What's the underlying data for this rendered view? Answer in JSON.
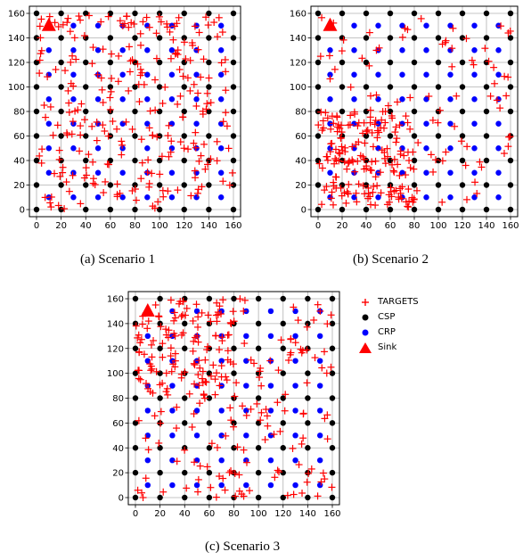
{
  "captions": {
    "a": "(a)  Scenario 1",
    "b": "(b)  Scenario 2",
    "c": "(c)  Scenario 3"
  },
  "legend": {
    "targets": "TARGETS",
    "csp": "CSP",
    "crp": "CRP",
    "sink": "Sink"
  },
  "colors": {
    "targets": "#ff0000",
    "csp": "#000000",
    "crp": "#0000ff",
    "sink": "#ff0000",
    "grid": "#b0b0b0"
  },
  "chart_data": [
    {
      "type": "scatter",
      "title": "",
      "xlim": [
        0,
        160
      ],
      "ylim": [
        0,
        160
      ],
      "xticks": [
        0,
        20,
        40,
        60,
        80,
        100,
        120,
        140,
        160
      ],
      "yticks": [
        0,
        20,
        40,
        60,
        80,
        100,
        120,
        140,
        160
      ],
      "grid": true,
      "csp_grid": {
        "start": 0,
        "end": 160,
        "step": 20
      },
      "crp_grid": {
        "start": 10,
        "end": 150,
        "step": 20
      },
      "sink": [
        10,
        150
      ],
      "targets_distribution": "uniform",
      "targets_count": 250
    },
    {
      "type": "scatter",
      "title": "",
      "xlim": [
        0,
        160
      ],
      "ylim": [
        0,
        160
      ],
      "xticks": [
        0,
        20,
        40,
        60,
        80,
        100,
        120,
        140,
        160
      ],
      "yticks": [
        0,
        20,
        40,
        60,
        80,
        100,
        120,
        140,
        160
      ],
      "grid": true,
      "csp_grid": {
        "start": 0,
        "end": 160,
        "step": 20
      },
      "crp_grid": {
        "start": 10,
        "end": 150,
        "step": 20
      },
      "sink": [
        10,
        150
      ],
      "targets_distribution": "clustered, dense in lower-left region (x 0-80, y 0-80), sparse elsewhere",
      "targets_count": 250
    },
    {
      "type": "scatter",
      "title": "",
      "xlim": [
        0,
        160
      ],
      "ylim": [
        0,
        160
      ],
      "xticks": [
        0,
        20,
        40,
        60,
        80,
        100,
        120,
        140,
        160
      ],
      "yticks": [
        0,
        20,
        40,
        60,
        80,
        100,
        120,
        140,
        160
      ],
      "grid": true,
      "csp_grid": {
        "start": 0,
        "end": 160,
        "step": 20
      },
      "crp_grid": {
        "start": 10,
        "end": 150,
        "step": 20
      },
      "sink": [
        10,
        150
      ],
      "targets_distribution": "uniform, denser in upper-left",
      "targets_count": 260
    }
  ]
}
